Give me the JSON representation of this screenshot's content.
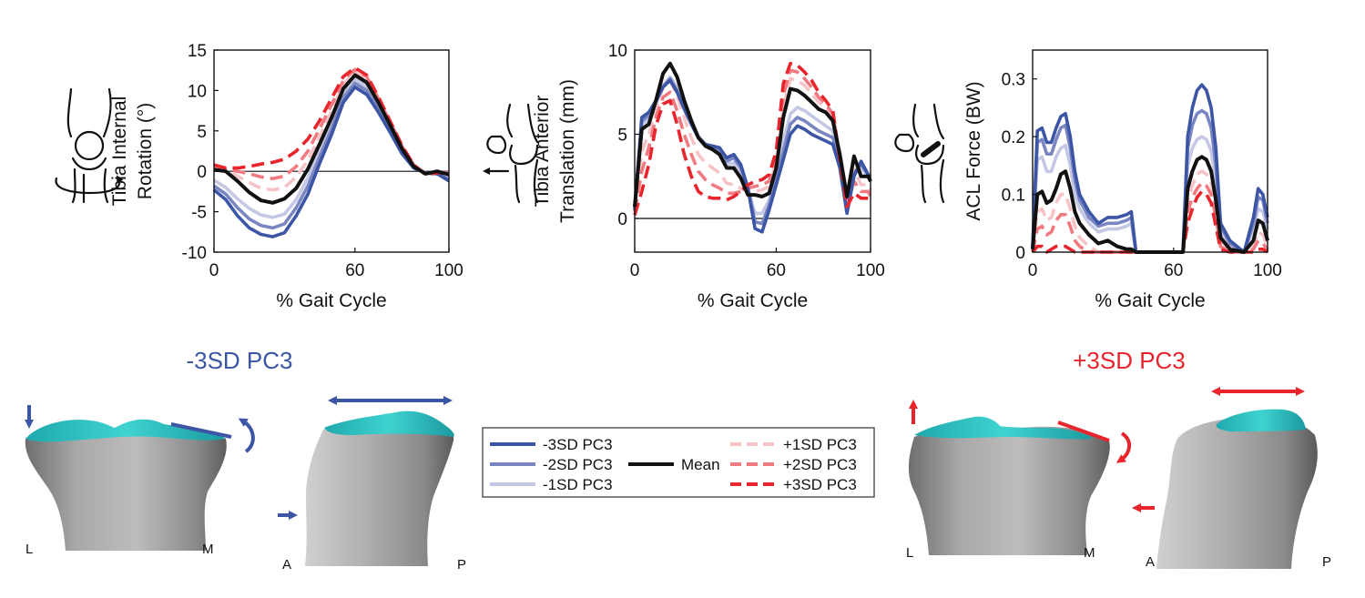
{
  "chart_data": [
    {
      "type": "line",
      "ylabel": [
        "Tibia Internal",
        "Rotation (°)"
      ],
      "xlabel": "% Gait Cycle",
      "xlim": [
        0,
        100
      ],
      "ylim": [
        -10,
        15
      ],
      "xticks": [
        "0",
        "60",
        "100"
      ],
      "yticks": [
        "-10",
        "-5",
        "0",
        "5",
        "10",
        "15"
      ],
      "x": [
        0,
        5,
        10,
        15,
        20,
        25,
        30,
        35,
        40,
        45,
        50,
        55,
        60,
        65,
        70,
        75,
        80,
        85,
        90,
        95,
        100
      ],
      "series": [
        {
          "name": "-3SD PC3",
          "values": [
            -2.3,
            -3.5,
            -5.5,
            -7,
            -7.8,
            -8.1,
            -7.6,
            -5.5,
            -2.8,
            1,
            4.5,
            8.5,
            10.4,
            9.5,
            7.3,
            4.8,
            2.2,
            0.4,
            -0.2,
            -0.3,
            -1.2
          ]
        },
        {
          "name": "-2SD PC3",
          "values": [
            -1.8,
            -2.8,
            -4.5,
            -5.9,
            -6.7,
            -7,
            -6.5,
            -4.5,
            -1.8,
            1.8,
            5.2,
            9.1,
            10.9,
            10,
            7.7,
            5.1,
            2.4,
            0.5,
            -0.2,
            -0.3,
            -1
          ]
        },
        {
          "name": "-1SD PC3",
          "values": [
            -1.1,
            -2,
            -3.4,
            -4.6,
            -5.4,
            -5.7,
            -5.3,
            -3.5,
            -0.8,
            2.6,
            5.9,
            9.7,
            11.4,
            10.5,
            8.1,
            5.4,
            2.6,
            0.6,
            -0.2,
            -0.3,
            -0.8
          ]
        },
        {
          "name": "Mean",
          "values": [
            0.2,
            0,
            -1.2,
            -2.6,
            -3.6,
            -3.9,
            -3.4,
            -2.1,
            0.3,
            3.4,
            6.6,
            10.2,
            11.9,
            11,
            8.5,
            5.7,
            2.8,
            0.6,
            -0.3,
            0,
            -0.4
          ]
        },
        {
          "name": "+1SD PC3",
          "values": [
            0.4,
            0.2,
            -0.6,
            -1.4,
            -2.1,
            -2.3,
            -2.0,
            -0.7,
            1.4,
            4.3,
            7.4,
            10.7,
            12.3,
            11.4,
            8.8,
            6,
            3,
            0.8,
            -0.2,
            -0.1,
            -0.3
          ]
        },
        {
          "name": "+2SD PC3",
          "values": [
            0.6,
            0.3,
            0.0,
            -0.3,
            -0.7,
            -0.9,
            -0.6,
            0.6,
            2.5,
            5.3,
            8.2,
            11.2,
            12.6,
            11.7,
            9,
            6.1,
            3.1,
            0.8,
            -0.3,
            -0.1,
            -0.2
          ]
        },
        {
          "name": "+3SD PC3",
          "values": [
            0.8,
            0.4,
            0.4,
            0.6,
            0.9,
            1.1,
            1.5,
            2.5,
            4.0,
            6.3,
            9.0,
            11.7,
            12.8,
            11.9,
            9.2,
            6.2,
            3.2,
            0.8,
            -0.4,
            -0.2,
            -0.1
          ]
        }
      ]
    },
    {
      "type": "line",
      "ylabel": [
        "Tibia Anterior",
        "Translation (mm)"
      ],
      "xlabel": "% Gait Cycle",
      "xlim": [
        0,
        100
      ],
      "ylim": [
        -2,
        10
      ],
      "xticks": [
        "0",
        "60",
        "100"
      ],
      "yticks": [
        "0",
        "5",
        "10"
      ],
      "x": [
        0,
        3,
        6,
        9,
        12,
        15,
        18,
        21,
        24,
        27,
        30,
        33,
        36,
        39,
        42,
        45,
        48,
        51,
        54,
        57,
        60,
        63,
        66,
        69,
        72,
        75,
        78,
        81,
        84,
        87,
        90,
        93,
        96,
        99,
        100
      ],
      "series": [
        {
          "name": "-3SD PC3",
          "values": [
            0.5,
            6.0,
            6.3,
            7.0,
            7.8,
            8.2,
            7.5,
            6.5,
            5.6,
            4.8,
            4.4,
            4.3,
            4.2,
            3.6,
            3.8,
            3.2,
            1.8,
            -0.6,
            -0.8,
            0.5,
            2.0,
            3.5,
            5.0,
            5.5,
            5.3,
            5.0,
            4.8,
            4.6,
            4.4,
            3.0,
            0.3,
            2.5,
            3.4,
            2.6,
            2.5
          ]
        },
        {
          "name": "-2SD PC3",
          "values": [
            0.6,
            5.8,
            6.1,
            6.9,
            7.8,
            8.3,
            7.6,
            6.6,
            5.6,
            4.8,
            4.4,
            4.2,
            4.0,
            3.4,
            3.6,
            3.0,
            1.8,
            -0.2,
            -0.3,
            0.8,
            2.3,
            4.0,
            5.6,
            6.0,
            5.8,
            5.5,
            5.2,
            5.0,
            4.8,
            3.3,
            0.6,
            2.7,
            3.2,
            2.6,
            2.4
          ]
        },
        {
          "name": "-1SD PC3",
          "values": [
            0.6,
            5.6,
            5.9,
            6.8,
            7.9,
            8.4,
            7.8,
            6.8,
            5.7,
            4.9,
            4.4,
            4.2,
            3.9,
            3.2,
            3.3,
            2.7,
            1.8,
            0.3,
            0.3,
            1.1,
            2.6,
            4.6,
            6.2,
            6.6,
            6.4,
            6.1,
            5.8,
            5.5,
            5.2,
            3.5,
            0.9,
            2.8,
            3.0,
            2.5,
            2.3
          ]
        },
        {
          "name": "Mean",
          "values": [
            0.7,
            5.3,
            5.6,
            7.0,
            8.6,
            9.2,
            8.4,
            7.0,
            5.8,
            4.8,
            4.3,
            4.1,
            3.8,
            3.0,
            3.0,
            2.4,
            1.4,
            1.4,
            1.3,
            1.5,
            3.0,
            6.0,
            7.7,
            7.6,
            7.3,
            6.9,
            6.5,
            6.3,
            5.8,
            3.8,
            1.3,
            3.7,
            2.5,
            2.5,
            2.2
          ]
        },
        {
          "name": "+1SD PC3",
          "values": [
            0.6,
            4.0,
            5.0,
            6.5,
            7.8,
            8.2,
            7.3,
            6.0,
            4.8,
            3.8,
            3.3,
            3.0,
            2.7,
            2.1,
            2.0,
            1.8,
            1.6,
            1.6,
            1.7,
            1.9,
            3.3,
            6.6,
            8.3,
            8.2,
            7.9,
            7.4,
            6.9,
            6.6,
            6.0,
            3.7,
            1.1,
            2.9,
            2.0,
            2.0,
            1.7
          ]
        },
        {
          "name": "+2SD PC3",
          "values": [
            0.4,
            2.8,
            4.2,
            6.0,
            7.2,
            7.5,
            6.4,
            5.0,
            3.8,
            2.8,
            2.3,
            2.0,
            1.8,
            1.5,
            1.5,
            1.6,
            1.8,
            1.9,
            2.0,
            2.2,
            3.6,
            7.3,
            8.8,
            8.7,
            8.3,
            7.8,
            7.2,
            6.8,
            6.2,
            3.6,
            0.9,
            2.2,
            1.6,
            1.6,
            1.3
          ]
        },
        {
          "name": "+3SD PC3",
          "values": [
            0.2,
            1.6,
            3.2,
            5.5,
            6.8,
            7.0,
            5.6,
            3.8,
            2.5,
            1.6,
            1.3,
            1.2,
            1.2,
            1.1,
            1.3,
            1.6,
            2.0,
            2.2,
            2.3,
            2.6,
            4.0,
            8.0,
            9.2,
            9.1,
            8.7,
            8.2,
            7.5,
            7.0,
            6.4,
            3.5,
            0.7,
            1.5,
            1.2,
            1.2,
            0.9
          ]
        }
      ]
    },
    {
      "type": "line",
      "ylabel": [
        "ACL Force (BW)"
      ],
      "xlabel": "% Gait Cycle",
      "xlim": [
        0,
        100
      ],
      "ylim": [
        0,
        0.35
      ],
      "xticks": [
        "0",
        "60",
        "100"
      ],
      "yticks": [
        "0",
        "0.1",
        "0.2",
        "0.3"
      ],
      "x": [
        0,
        2,
        4,
        6,
        8,
        10,
        12,
        14,
        16,
        18,
        20,
        24,
        28,
        32,
        36,
        40,
        42,
        44,
        50,
        60,
        64,
        66,
        68,
        70,
        72,
        74,
        76,
        78,
        80,
        84,
        90,
        94,
        96,
        98,
        100
      ],
      "series": [
        {
          "name": "-3SD PC3",
          "values": [
            0.01,
            0.21,
            0.215,
            0.19,
            0.19,
            0.215,
            0.235,
            0.24,
            0.2,
            0.14,
            0.1,
            0.07,
            0.05,
            0.06,
            0.06,
            0.065,
            0.07,
            0.0,
            0.0,
            0.0,
            0.0,
            0.2,
            0.25,
            0.28,
            0.29,
            0.28,
            0.25,
            0.18,
            0.05,
            0.02,
            0.0,
            0.06,
            0.11,
            0.1,
            0.06
          ]
        },
        {
          "name": "-2SD PC3",
          "values": [
            0.01,
            0.19,
            0.195,
            0.17,
            0.17,
            0.195,
            0.215,
            0.22,
            0.18,
            0.125,
            0.09,
            0.06,
            0.045,
            0.05,
            0.05,
            0.055,
            0.06,
            0.0,
            0.0,
            0.0,
            0.0,
            0.18,
            0.22,
            0.24,
            0.245,
            0.24,
            0.215,
            0.15,
            0.045,
            0.015,
            0.0,
            0.05,
            0.095,
            0.09,
            0.05
          ]
        },
        {
          "name": "-1SD PC3",
          "values": [
            0.01,
            0.16,
            0.165,
            0.14,
            0.14,
            0.165,
            0.18,
            0.185,
            0.15,
            0.1,
            0.075,
            0.05,
            0.035,
            0.04,
            0.04,
            0.045,
            0.05,
            0.0,
            0.0,
            0.0,
            0.0,
            0.15,
            0.18,
            0.195,
            0.2,
            0.195,
            0.175,
            0.12,
            0.035,
            0.01,
            0.0,
            0.04,
            0.075,
            0.07,
            0.04
          ]
        },
        {
          "name": "Mean",
          "values": [
            0.005,
            0.1,
            0.105,
            0.085,
            0.09,
            0.11,
            0.135,
            0.14,
            0.11,
            0.07,
            0.05,
            0.03,
            0.015,
            0.02,
            0.01,
            0.005,
            0.005,
            0.0,
            0.0,
            0.0,
            0.0,
            0.11,
            0.14,
            0.16,
            0.165,
            0.16,
            0.14,
            0.09,
            0.025,
            0.005,
            0.0,
            0.02,
            0.055,
            0.05,
            0.02
          ]
        },
        {
          "name": "+1SD PC3",
          "values": [
            0.005,
            0.07,
            0.075,
            0.055,
            0.06,
            0.085,
            0.1,
            0.1,
            0.075,
            0.045,
            0.025,
            0.01,
            0.0,
            0.0,
            0.0,
            0.0,
            0.0,
            0.0,
            0.0,
            0.0,
            0.0,
            0.09,
            0.115,
            0.135,
            0.14,
            0.135,
            0.12,
            0.075,
            0.02,
            0.005,
            0.0,
            0.01,
            0.035,
            0.03,
            0.01
          ]
        },
        {
          "name": "+2SD PC3",
          "values": [
            0.0,
            0.04,
            0.045,
            0.03,
            0.035,
            0.055,
            0.065,
            0.065,
            0.045,
            0.02,
            0.01,
            0.0,
            0.0,
            0.0,
            0.0,
            0.0,
            0.0,
            0.0,
            0.0,
            0.0,
            0.0,
            0.07,
            0.095,
            0.11,
            0.12,
            0.115,
            0.1,
            0.06,
            0.01,
            0.0,
            0.0,
            0.005,
            0.02,
            0.015,
            0.005
          ]
        },
        {
          "name": "+3SD PC3",
          "values": [
            0.0,
            0.01,
            0.01,
            0.0,
            0.005,
            0.01,
            0.01,
            0.01,
            0.005,
            0.0,
            0.0,
            0.0,
            0.0,
            0.0,
            0.0,
            0.0,
            0.0,
            0.0,
            0.0,
            0.0,
            0.0,
            0.05,
            0.075,
            0.095,
            0.105,
            0.1,
            0.085,
            0.045,
            0.005,
            0.0,
            0.0,
            0.0,
            0.005,
            0.005,
            0.0
          ]
        }
      ]
    }
  ],
  "series_styles": [
    {
      "name": "-3SD PC3",
      "color": "#3c55a5",
      "dash": "solid"
    },
    {
      "name": "-2SD PC3",
      "color": "#7a86c2",
      "dash": "solid"
    },
    {
      "name": "-1SD PC3",
      "color": "#c4c8e4",
      "dash": "solid"
    },
    {
      "name": "Mean",
      "color": "#111111",
      "dash": "solid"
    },
    {
      "name": "+1SD PC3",
      "color": "#f6c4c6",
      "dash": "dashed"
    },
    {
      "name": "+2SD PC3",
      "color": "#f07a80",
      "dash": "dashed"
    },
    {
      "name": "+3SD PC3",
      "color": "#e8242c",
      "dash": "dashed"
    }
  ],
  "legend": {
    "items": [
      "-3SD PC3",
      "-2SD PC3",
      "-1SD PC3",
      "Mean",
      "+1SD PC3",
      "+2SD PC3",
      "+3SD PC3"
    ]
  },
  "panels": {
    "minus_title": "-3SD PC3",
    "plus_title": "+3SD PC3",
    "minus_color": "#3c55a5",
    "plus_color": "#e8242c",
    "cartilage_color": "#2ec4c4",
    "bone_color": "#9a9a9a"
  },
  "anatomy_labels": {
    "L": "L",
    "M": "M",
    "A": "A",
    "P": "P"
  }
}
